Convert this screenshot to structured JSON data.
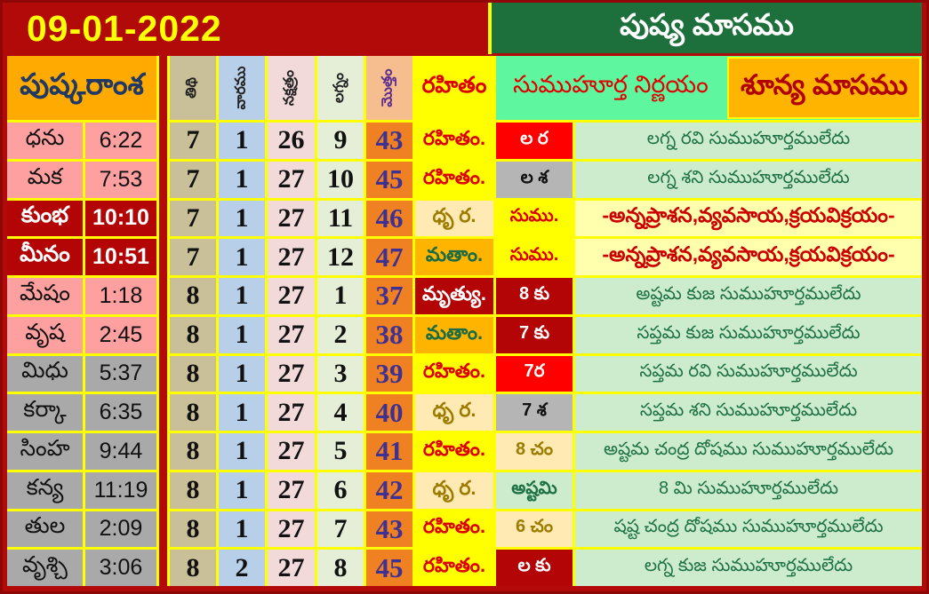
{
  "header": {
    "date": "09-01-2022",
    "month_title": "పుష్య మాసము"
  },
  "table": {
    "left_header": "పుష్కరాంశ",
    "columns": [
      {
        "key": "tithi",
        "label": "తిథి"
      },
      {
        "key": "vara",
        "label": "వారము"
      },
      {
        "key": "nakshatra",
        "label": "నక్షత్రం"
      },
      {
        "key": "lagna",
        "label": "లగ్నం"
      },
      {
        "key": "total",
        "label": "మొత్తం"
      }
    ],
    "rahitham_header": "రహితం",
    "sumuhurta_header": "సుముహూర్త నిర్ణయం",
    "shunya_header": "శూన్య మాసము",
    "rows": [
      {
        "rasi": "ధను",
        "time": "6:22",
        "row_style": "pink",
        "tithi": "7",
        "vara": "1",
        "nakshatra": "26",
        "lagna": "9",
        "total": "43",
        "rahitham": {
          "text": "రహితం.",
          "style": "yellow-red"
        },
        "muhurta": {
          "text": "ల ర",
          "style": "red-white"
        },
        "note": {
          "text": "లగ్న రవి సుముహూర్తములేదు",
          "style": "mint-green"
        }
      },
      {
        "rasi": "మక",
        "time": "7:53",
        "row_style": "pink",
        "tithi": "7",
        "vara": "1",
        "nakshatra": "27",
        "lagna": "10",
        "total": "45",
        "rahitham": {
          "text": "రహితం.",
          "style": "yellow-red"
        },
        "muhurta": {
          "text": "ల శ",
          "style": "gray-black"
        },
        "note": {
          "text": "లగ్న శని సుముహూర్తములేదు",
          "style": "mint-green"
        }
      },
      {
        "rasi": "కుంభ",
        "time": "10:10",
        "row_style": "darkred",
        "tithi": "7",
        "vara": "1",
        "nakshatra": "27",
        "lagna": "11",
        "total": "46",
        "rahitham": {
          "text": "ధృ ర.",
          "style": "cream-olive"
        },
        "muhurta": {
          "text": "సుము.",
          "style": "yellow-red"
        },
        "note": {
          "text": "-అన్నప్రాశన,వ్యవసాయ,క్రయవిక్రయం-",
          "style": "yellow-note"
        }
      },
      {
        "rasi": "మీనం",
        "time": "10:51",
        "row_style": "darkred",
        "tithi": "7",
        "vara": "1",
        "nakshatra": "27",
        "lagna": "12",
        "total": "47",
        "rahitham": {
          "text": "మతాం.",
          "style": "orange-green"
        },
        "muhurta": {
          "text": "సుము.",
          "style": "yellow-red"
        },
        "note": {
          "text": "-అన్నప్రాశన,వ్యవసాయ,క్రయవిక్రయం-",
          "style": "yellow-note"
        }
      },
      {
        "rasi": "మేషం",
        "time": "1:18",
        "row_style": "pink",
        "tithi": "8",
        "vara": "1",
        "nakshatra": "27",
        "lagna": "1",
        "total": "37",
        "rahitham": {
          "text": "మృత్యు.",
          "style": "darkred-white"
        },
        "muhurta": {
          "text": "8 కు",
          "style": "darkred-white"
        },
        "note": {
          "text": "అష్టమ కుజ సుముహూర్తములేదు",
          "style": "mint-green"
        }
      },
      {
        "rasi": "వృష",
        "time": "2:45",
        "row_style": "pink",
        "tithi": "8",
        "vara": "1",
        "nakshatra": "27",
        "lagna": "2",
        "total": "38",
        "rahitham": {
          "text": "మతాం.",
          "style": "orange-green"
        },
        "muhurta": {
          "text": "7 కు",
          "style": "darkred-white"
        },
        "note": {
          "text": "సప్తమ కుజ సుముహూర్తములేదు",
          "style": "mint-green"
        }
      },
      {
        "rasi": "మిధు",
        "time": "5:37",
        "row_style": "gray",
        "tithi": "8",
        "vara": "1",
        "nakshatra": "27",
        "lagna": "3",
        "total": "39",
        "rahitham": {
          "text": "రహితం.",
          "style": "yellow-red"
        },
        "muhurta": {
          "text": "7ర",
          "style": "red-white"
        },
        "note": {
          "text": "సప్తమ రవి సుముహూర్తములేదు",
          "style": "mint-green"
        }
      },
      {
        "rasi": "కర్కా",
        "time": "6:35",
        "row_style": "gray",
        "tithi": "8",
        "vara": "1",
        "nakshatra": "27",
        "lagna": "4",
        "total": "40",
        "rahitham": {
          "text": "ధృ ర.",
          "style": "cream-olive"
        },
        "muhurta": {
          "text": "7 శ",
          "style": "gray-black"
        },
        "note": {
          "text": "సప్తమ శని సుముహూర్తములేదు",
          "style": "mint-green"
        }
      },
      {
        "rasi": "సింహ",
        "time": "9:44",
        "row_style": "gray",
        "tithi": "8",
        "vara": "1",
        "nakshatra": "27",
        "lagna": "5",
        "total": "41",
        "rahitham": {
          "text": "రహితం.",
          "style": "yellow-red"
        },
        "muhurta": {
          "text": "8 చం",
          "style": "cream-olive"
        },
        "note": {
          "text": "అష్టమ చంద్ర దోషము సుముహూర్తములేదు",
          "style": "mint-green"
        }
      },
      {
        "rasi": "కన్య",
        "time": "11:19",
        "row_style": "gray",
        "tithi": "8",
        "vara": "1",
        "nakshatra": "27",
        "lagna": "6",
        "total": "42",
        "rahitham": {
          "text": "ధృ ర.",
          "style": "cream-olive"
        },
        "muhurta": {
          "text": "అష్టమి",
          "style": "mint-green"
        },
        "note": {
          "text": "8 మి సుముహూర్తములేదు",
          "style": "mint-green"
        }
      },
      {
        "rasi": "తుల",
        "time": "2:09",
        "row_style": "gray",
        "tithi": "8",
        "vara": "1",
        "nakshatra": "27",
        "lagna": "7",
        "total": "43",
        "rahitham": {
          "text": "రహితం.",
          "style": "yellow-red"
        },
        "muhurta": {
          "text": "6 చం",
          "style": "cream-olive"
        },
        "note": {
          "text": "షష్ట చంద్ర దోషము సుముహూర్తములేదు",
          "style": "mint-green"
        }
      },
      {
        "rasi": "వృశ్చి",
        "time": "3:06",
        "row_style": "gray",
        "tithi": "8",
        "vara": "2",
        "nakshatra": "27",
        "lagna": "8",
        "total": "45",
        "rahitham": {
          "text": "రహితం.",
          "style": "yellow-red"
        },
        "muhurta": {
          "text": "ల కు",
          "style": "darkred-white"
        },
        "note": {
          "text": "లగ్న కుజ సుముహూర్తములేదు",
          "style": "mint-green"
        }
      }
    ]
  },
  "colors": {
    "page_red": "#b20909",
    "grid_yellow": "#ffff00",
    "title_green": "#1d6f3c",
    "header_orange": "#ffaa00",
    "shunya_orange": "#ffb400",
    "mint_header": "#5ef7a0",
    "mint_cell": "#cdeccd",
    "pink_row": "#ffa0a0",
    "gray_row": "#a9a9a9",
    "darkred_row": "#b30505",
    "total_col_orange": "#f08122",
    "total_text_indigo": "#3f3191",
    "date_text_yellow": "#ffff00",
    "red_text": "#dd0000",
    "green_text": "#1e7145"
  }
}
